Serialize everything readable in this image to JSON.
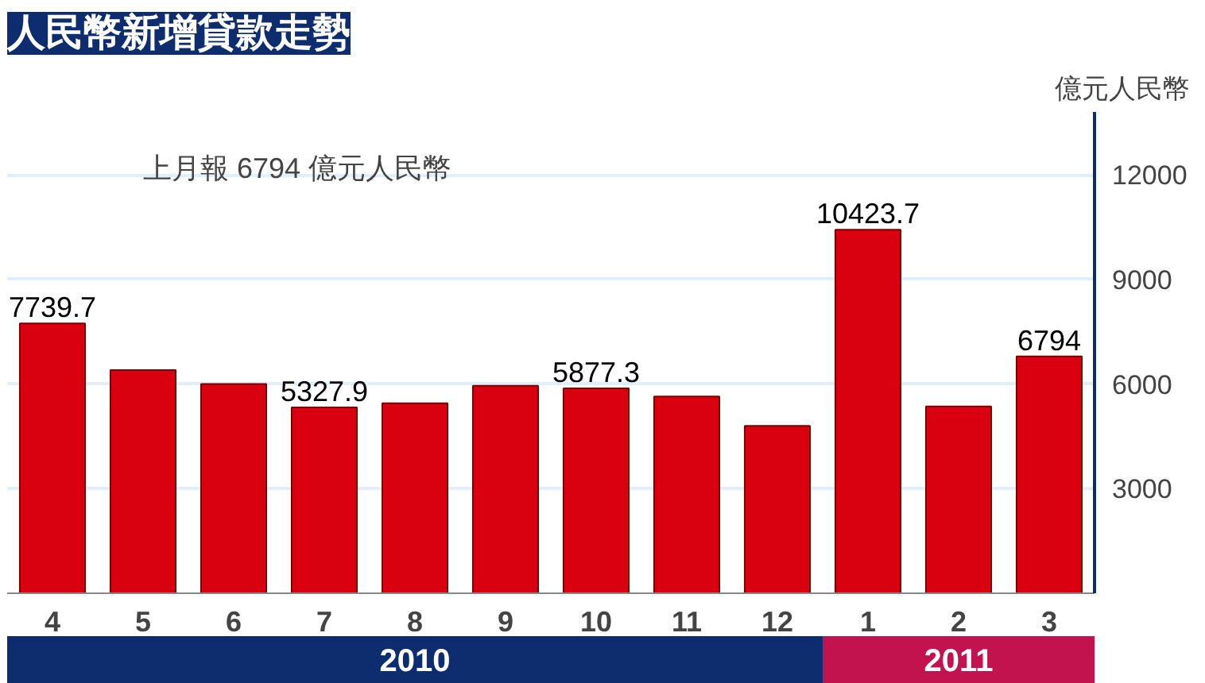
{
  "chart_data": {
    "type": "bar",
    "title": "人民幣新增貸款走勢",
    "ylabel": "億元人民幣",
    "categories": [
      "4",
      "5",
      "6",
      "7",
      "8",
      "9",
      "10",
      "11",
      "12",
      "1",
      "2",
      "3"
    ],
    "values": [
      7739.7,
      6400,
      6000,
      5327.9,
      5450,
      5950,
      5877.3,
      5640,
      4800,
      10423.7,
      5360,
      6794
    ],
    "value_labels": [
      "7739.7",
      null,
      null,
      "5327.9",
      null,
      null,
      "5877.3",
      null,
      null,
      "10423.7",
      null,
      "6794"
    ],
    "color": "#d90010",
    "ylim": [
      0,
      13800
    ],
    "yticks": [
      3000,
      6000,
      9000,
      12000
    ],
    "grid": "y",
    "annotations": [
      "上月報 6794 億元人民幣",
      "2010",
      "2011"
    ]
  }
}
